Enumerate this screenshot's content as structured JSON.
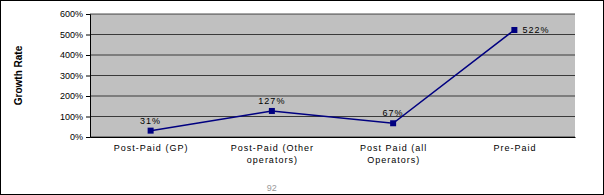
{
  "chart_data": {
    "type": "line",
    "y_label": "Growth Rate",
    "categories": [
      "Post-Paid (GP)",
      "Post-Paid (Other operators)",
      "Post Paid (all Operators)",
      "Pre-Paid"
    ],
    "values": [
      31,
      127,
      67,
      522
    ],
    "value_labels": [
      "31%",
      "127%",
      "67%",
      "522%"
    ],
    "color": "#000080",
    "marker": "square",
    "line_style": "solid",
    "data_labels": true,
    "grid": true,
    "ylim": [
      0,
      600
    ],
    "yticks": [
      {
        "value": 0,
        "label": "0%"
      },
      {
        "value": 100,
        "label": "100%"
      },
      {
        "value": 200,
        "label": "200%"
      },
      {
        "value": 300,
        "label": "300%"
      },
      {
        "value": 400,
        "label": "400%"
      },
      {
        "value": 500,
        "label": "500%"
      },
      {
        "value": 600,
        "label": "600%"
      }
    ],
    "annotations": [
      "92"
    ]
  }
}
